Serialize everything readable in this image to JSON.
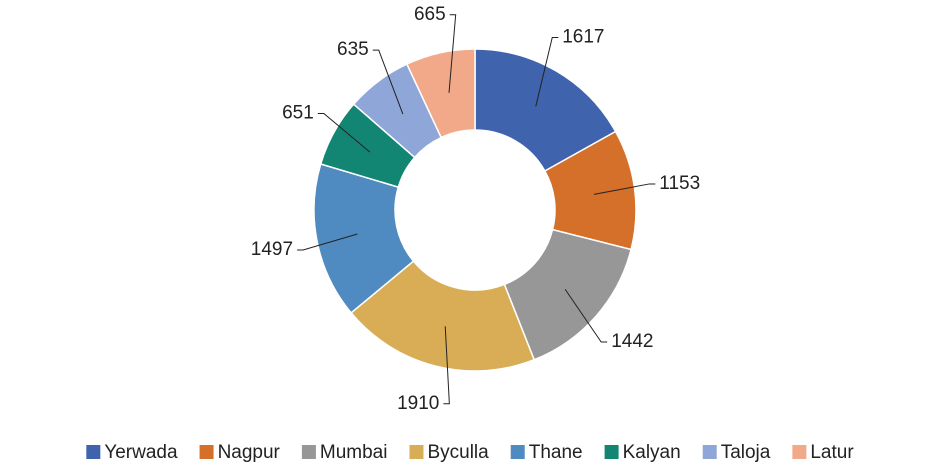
{
  "chart_data": {
    "type": "donut",
    "categories": [
      "Yerwada",
      "Nagpur",
      "Mumbai",
      "Byculla",
      "Thane",
      "Kalyan",
      "Taloja",
      "Latur"
    ],
    "values": [
      1617,
      1153,
      1442,
      1910,
      1497,
      651,
      635,
      665
    ],
    "colors": [
      "#3f63ad",
      "#d4702a",
      "#979797",
      "#d9ad56",
      "#4f8ac0",
      "#138573",
      "#8fa6d8",
      "#f2a98a"
    ],
    "legend": "bottom"
  }
}
